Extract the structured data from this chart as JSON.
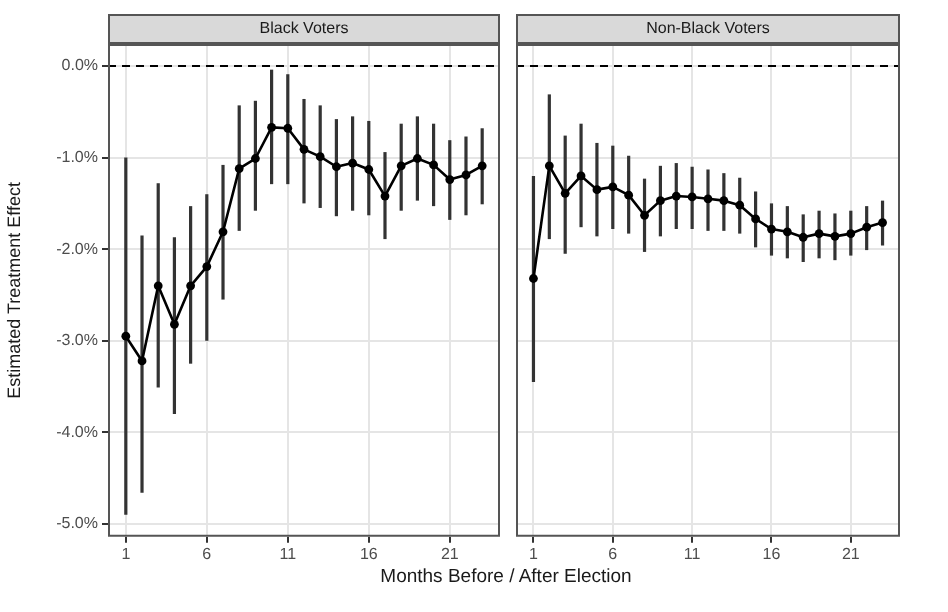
{
  "chart_data": [
    {
      "type": "line",
      "title": "Black Voters",
      "xlabel": "Months Before / After Election",
      "ylabel": "Estimated Treatment Effect",
      "x": [
        1,
        2,
        3,
        4,
        5,
        6,
        7,
        8,
        9,
        10,
        11,
        12,
        13,
        14,
        15,
        16,
        17,
        18,
        19,
        20,
        21,
        22,
        23
      ],
      "series": [
        {
          "color": "#000000",
          "values": [
            -2.95,
            -3.22,
            -2.4,
            -2.82,
            -2.4,
            -2.19,
            -1.81,
            -1.12,
            -1.01,
            -0.67,
            -0.68,
            -0.91,
            -0.99,
            -1.1,
            -1.06,
            -1.13,
            -1.42,
            -1.09,
            -1.01,
            -1.08,
            -1.24,
            -1.19,
            -1.09
          ],
          "errors": [
            [
              -4.9,
              -1.0
            ],
            [
              -4.66,
              -1.85
            ],
            [
              -3.51,
              -1.28
            ],
            [
              -3.8,
              -1.87
            ],
            [
              -3.25,
              -1.53
            ],
            [
              -3.0,
              -1.4
            ],
            [
              -2.55,
              -1.08
            ],
            [
              -1.8,
              -0.43
            ],
            [
              -1.58,
              -0.38
            ],
            [
              -1.29,
              -0.04
            ],
            [
              -1.29,
              -0.09
            ],
            [
              -1.5,
              -0.36
            ],
            [
              -1.55,
              -0.43
            ],
            [
              -1.64,
              -0.58
            ],
            [
              -1.58,
              -0.55
            ],
            [
              -1.63,
              -0.6
            ],
            [
              -1.89,
              -0.94
            ],
            [
              -1.58,
              -0.63
            ],
            [
              -1.47,
              -0.55
            ],
            [
              -1.53,
              -0.63
            ],
            [
              -1.68,
              -0.81
            ],
            [
              -1.63,
              -0.77
            ],
            [
              -1.51,
              -0.68
            ]
          ]
        }
      ],
      "xlim": [
        -0.1,
        24.1
      ],
      "xticks": [
        1,
        6,
        11,
        16,
        21
      ],
      "ylim": [
        -5.14,
        0.24
      ],
      "yticks": [
        {
          "value": -5,
          "label": "-5.0%"
        },
        {
          "value": -4,
          "label": "-4.0%"
        },
        {
          "value": -3,
          "label": "-3.0%"
        },
        {
          "value": -2,
          "label": "-2.0%"
        },
        {
          "value": -1,
          "label": "-1.0%"
        },
        {
          "value": 0,
          "label": "0.0%"
        }
      ],
      "ref_lines": [
        {
          "axis": "y",
          "value": 0,
          "color": "#000000",
          "line_style": "dashed"
        }
      ],
      "grid": true,
      "marker": "circle",
      "line_style": "solid"
    },
    {
      "type": "line",
      "title": "Non-Black Voters",
      "x": [
        1,
        2,
        3,
        4,
        5,
        6,
        7,
        8,
        9,
        10,
        11,
        12,
        13,
        14,
        15,
        16,
        17,
        18,
        19,
        20,
        21,
        22,
        23
      ],
      "series": [
        {
          "color": "#000000",
          "values": [
            -2.32,
            -1.09,
            -1.39,
            -1.2,
            -1.35,
            -1.32,
            -1.41,
            -1.63,
            -1.47,
            -1.42,
            -1.43,
            -1.45,
            -1.47,
            -1.52,
            -1.67,
            -1.78,
            -1.81,
            -1.87,
            -1.83,
            -1.86,
            -1.83,
            -1.76,
            -1.71
          ],
          "errors": [
            [
              -3.45,
              -1.2
            ],
            [
              -1.89,
              -0.31
            ],
            [
              -2.05,
              -0.76
            ],
            [
              -1.76,
              -0.63
            ],
            [
              -1.86,
              -0.84
            ],
            [
              -1.78,
              -0.87
            ],
            [
              -1.83,
              -0.98
            ],
            [
              -2.03,
              -1.23
            ],
            [
              -1.86,
              -1.09
            ],
            [
              -1.78,
              -1.06
            ],
            [
              -1.78,
              -1.1
            ],
            [
              -1.8,
              -1.13
            ],
            [
              -1.8,
              -1.17
            ],
            [
              -1.83,
              -1.22
            ],
            [
              -1.98,
              -1.37
            ],
            [
              -2.07,
              -1.5
            ],
            [
              -2.1,
              -1.53
            ],
            [
              -2.14,
              -1.62
            ],
            [
              -2.1,
              -1.58
            ],
            [
              -2.12,
              -1.61
            ],
            [
              -2.07,
              -1.58
            ],
            [
              -2.01,
              -1.53
            ],
            [
              -1.96,
              -1.47
            ]
          ]
        }
      ],
      "xlim": [
        -0.1,
        24.1
      ],
      "xticks": [
        1,
        6,
        11,
        16,
        21
      ],
      "ylim": [
        -5.14,
        0.24
      ],
      "yticks": [
        -5,
        -4,
        -3,
        -2,
        -1,
        0
      ],
      "ref_lines": [
        {
          "axis": "y",
          "value": 0,
          "color": "#000000",
          "line_style": "dashed"
        }
      ],
      "grid": true,
      "marker": "circle",
      "line_style": "solid",
      "tick_labels": "x"
    }
  ]
}
